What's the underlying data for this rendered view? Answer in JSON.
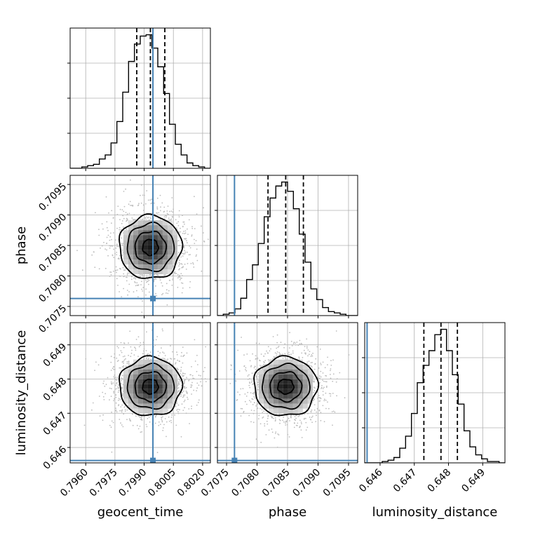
{
  "chart_data": {
    "type": "corner",
    "parameters": [
      "geocent_time",
      "phase",
      "luminosity_distance"
    ],
    "axis_labels": {
      "geocent_time": "geocent_time",
      "phase": "phase",
      "luminosity_distance": "luminosity_distance"
    },
    "ranges": {
      "geocent_time": [
        0.7952,
        0.8024
      ],
      "phase": [
        0.70735,
        0.70965
      ],
      "luminosity_distance": [
        0.64555,
        0.64965
      ]
    },
    "ticks": {
      "geocent_time": [
        {
          "value": 0.796,
          "label": "0.7960"
        },
        {
          "value": 0.7975,
          "label": "0.7975"
        },
        {
          "value": 0.799,
          "label": "0.7990"
        },
        {
          "value": 0.8005,
          "label": "0.8005"
        },
        {
          "value": 0.802,
          "label": "0.8020"
        }
      ],
      "phase": [
        {
          "value": 0.7075,
          "label": "0.7075"
        },
        {
          "value": 0.708,
          "label": "0.7080"
        },
        {
          "value": 0.7085,
          "label": "0.7085"
        },
        {
          "value": 0.709,
          "label": "0.7090"
        },
        {
          "value": 0.7095,
          "label": "0.7095"
        }
      ],
      "luminosity_distance": [
        {
          "value": 0.646,
          "label": "0.646"
        },
        {
          "value": 0.647,
          "label": "0.647"
        },
        {
          "value": 0.648,
          "label": "0.648"
        },
        {
          "value": 0.649,
          "label": "0.649"
        }
      ]
    },
    "injection": {
      "geocent_time": 0.79945,
      "phase": 0.70763,
      "luminosity_distance": 0.64562
    },
    "quantiles": {
      "geocent_time": [
        0.79862,
        0.79932,
        0.80006
      ],
      "phase": [
        0.70818,
        0.70847,
        0.70876
      ],
      "luminosity_distance": [
        0.64728,
        0.64778,
        0.64826
      ]
    },
    "marginals": {
      "geocent_time": {
        "bin_edges": [
          0.7952,
          0.7955,
          0.7958,
          0.7961,
          0.7964,
          0.7967,
          0.797,
          0.7973,
          0.7976,
          0.7979,
          0.7982,
          0.7985,
          0.7988,
          0.7991,
          0.7994,
          0.7997,
          0.8,
          0.8003,
          0.8006,
          0.8009,
          0.8012,
          0.8015,
          0.8018,
          0.8021,
          0.8024
        ],
        "counts": [
          0,
          0,
          1,
          2,
          3,
          7,
          10,
          19,
          35,
          57,
          80,
          93,
          99,
          100,
          90,
          76,
          56,
          33,
          18,
          10,
          4,
          2,
          1,
          0
        ]
      },
      "phase": {
        "bin_edges": [
          0.70735,
          0.707446,
          0.707542,
          0.707638,
          0.707733,
          0.707829,
          0.707925,
          0.708021,
          0.708117,
          0.708213,
          0.708308,
          0.708404,
          0.7085,
          0.708596,
          0.708692,
          0.708788,
          0.708883,
          0.708979,
          0.709075,
          0.709171,
          0.709267,
          0.709363,
          0.709458,
          0.709554,
          0.70965
        ],
        "counts": [
          0,
          1,
          2,
          5,
          13,
          27,
          38,
          54,
          74,
          88,
          97,
          100,
          93,
          80,
          61,
          40,
          20,
          12,
          6,
          3,
          2,
          1,
          0,
          0
        ]
      },
      "luminosity_distance": {
        "bin_edges": [
          0.64555,
          0.645721,
          0.645892,
          0.646063,
          0.646233,
          0.646404,
          0.646575,
          0.646746,
          0.646917,
          0.647088,
          0.647258,
          0.647429,
          0.6476,
          0.647771,
          0.647942,
          0.648113,
          0.648283,
          0.648454,
          0.648625,
          0.648796,
          0.648967,
          0.649138,
          0.649308,
          0.649479,
          0.64965
        ],
        "counts": [
          0,
          0,
          0,
          1,
          2,
          4,
          11,
          20,
          37,
          60,
          73,
          84,
          96,
          100,
          84,
          66,
          44,
          24,
          12,
          6,
          3,
          1,
          1,
          0
        ]
      }
    },
    "pairs": [
      {
        "x": "geocent_time",
        "y": "phase",
        "center": [
          0.79932,
          0.70847
        ],
        "sigma": [
          0.0008,
          0.00026
        ]
      },
      {
        "x": "geocent_time",
        "y": "luminosity_distance",
        "center": [
          0.79932,
          0.64778
        ],
        "sigma": [
          0.0008,
          0.00043
        ]
      },
      {
        "x": "phase",
        "y": "luminosity_distance",
        "center": [
          0.70847,
          0.64778
        ],
        "sigma": [
          0.00026,
          0.00043
        ]
      }
    ],
    "contour_levels_sigma": [
      0.5,
      1.0,
      1.5,
      2.0
    ],
    "colors": {
      "histogram": "#000000",
      "injection": "#4682b4",
      "grid": "#b0b0b0",
      "points": "#bdbdbd"
    },
    "grid": true
  }
}
